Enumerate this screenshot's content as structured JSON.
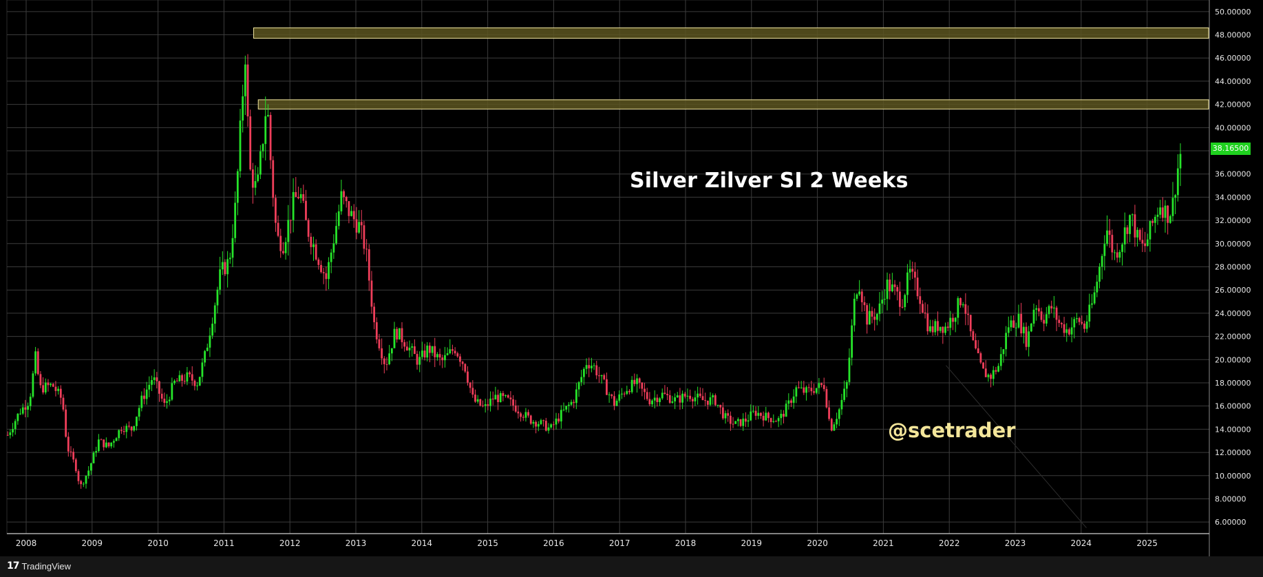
{
  "chart_data": {
    "type": "candlestick",
    "title": "Silver Zilver SI 2 Weeks",
    "watermark": "@scetrader",
    "ylim": [
      5,
      51
    ],
    "y_ticks": [
      "50.00000",
      "48.00000",
      "46.00000",
      "44.00000",
      "42.00000",
      "40.00000",
      "38.00000",
      "36.00000",
      "34.00000",
      "32.00000",
      "30.00000",
      "28.00000",
      "26.00000",
      "24.00000",
      "22.00000",
      "20.00000",
      "18.00000",
      "16.00000",
      "14.00000",
      "12.00000",
      "10.00000",
      "8.00000",
      "6.00000"
    ],
    "x_ticks": [
      "2008",
      "2009",
      "2010",
      "2011",
      "2012",
      "2013",
      "2014",
      "2015",
      "2016",
      "2017",
      "2018",
      "2019",
      "2020",
      "2021",
      "2022",
      "2023",
      "2024",
      "2025"
    ],
    "last_price": "38.16500",
    "resistance_zones": [
      {
        "from": 47.7,
        "to": 48.6,
        "start_year": 2011.45
      },
      {
        "from": 41.6,
        "to": 42.4,
        "start_year": 2011.52
      }
    ],
    "price_path": [
      [
        2007.72,
        13.5
      ],
      [
        2007.9,
        15.5
      ],
      [
        2008.05,
        16.5
      ],
      [
        2008.15,
        20.5
      ],
      [
        2008.2,
        17.5
      ],
      [
        2008.4,
        17.8
      ],
      [
        2008.55,
        16.5
      ],
      [
        2008.62,
        12.5
      ],
      [
        2008.75,
        10.8
      ],
      [
        2008.82,
        9.0
      ],
      [
        2008.95,
        10.5
      ],
      [
        2009.1,
        13.0
      ],
      [
        2009.25,
        12.5
      ],
      [
        2009.45,
        14.2
      ],
      [
        2009.6,
        14.0
      ],
      [
        2009.75,
        16.5
      ],
      [
        2009.92,
        18.5
      ],
      [
        2010.1,
        16.0
      ],
      [
        2010.25,
        18.0
      ],
      [
        2010.45,
        18.5
      ],
      [
        2010.6,
        18.0
      ],
      [
        2010.72,
        20.5
      ],
      [
        2010.85,
        24.5
      ],
      [
        2010.95,
        27.5
      ],
      [
        2011.08,
        28.5
      ],
      [
        2011.18,
        33.5
      ],
      [
        2011.3,
        44.5
      ],
      [
        2011.33,
        47.0
      ],
      [
        2011.38,
        36.5
      ],
      [
        2011.5,
        34.5
      ],
      [
        2011.58,
        38.5
      ],
      [
        2011.65,
        42.5
      ],
      [
        2011.72,
        36.0
      ],
      [
        2011.8,
        30.5
      ],
      [
        2011.9,
        30.0
      ],
      [
        2012.05,
        33.5
      ],
      [
        2012.15,
        34.5
      ],
      [
        2012.25,
        31.5
      ],
      [
        2012.45,
        28.5
      ],
      [
        2012.55,
        27.0
      ],
      [
        2012.7,
        31.5
      ],
      [
        2012.78,
        34.0
      ],
      [
        2012.92,
        32.5
      ],
      [
        2013.05,
        31.5
      ],
      [
        2013.15,
        29.5
      ],
      [
        2013.28,
        23.0
      ],
      [
        2013.45,
        19.5
      ],
      [
        2013.6,
        22.5
      ],
      [
        2013.75,
        21.5
      ],
      [
        2013.95,
        19.8
      ],
      [
        2014.1,
        21.0
      ],
      [
        2014.3,
        19.8
      ],
      [
        2014.5,
        21.0
      ],
      [
        2014.65,
        19.5
      ],
      [
        2014.78,
        16.5
      ],
      [
        2014.95,
        15.8
      ],
      [
        2015.1,
        16.8
      ],
      [
        2015.3,
        16.5
      ],
      [
        2015.5,
        15.5
      ],
      [
        2015.65,
        14.8
      ],
      [
        2015.8,
        14.5
      ],
      [
        2015.95,
        14.0
      ],
      [
        2016.1,
        15.2
      ],
      [
        2016.3,
        16.5
      ],
      [
        2016.5,
        19.8
      ],
      [
        2016.6,
        19.5
      ],
      [
        2016.75,
        18.0
      ],
      [
        2016.92,
        16.2
      ],
      [
        2017.1,
        17.5
      ],
      [
        2017.25,
        18.0
      ],
      [
        2017.45,
        16.5
      ],
      [
        2017.65,
        17.0
      ],
      [
        2017.85,
        16.5
      ],
      [
        2018.05,
        17.0
      ],
      [
        2018.25,
        16.5
      ],
      [
        2018.45,
        16.5
      ],
      [
        2018.6,
        15.0
      ],
      [
        2018.75,
        14.4
      ],
      [
        2018.92,
        14.8
      ],
      [
        2019.05,
        15.5
      ],
      [
        2019.25,
        15.0
      ],
      [
        2019.42,
        14.8
      ],
      [
        2019.55,
        16.0
      ],
      [
        2019.68,
        17.5
      ],
      [
        2019.82,
        17.2
      ],
      [
        2019.95,
        17.5
      ],
      [
        2020.1,
        17.8
      ],
      [
        2020.2,
        14.0
      ],
      [
        2020.32,
        15.5
      ],
      [
        2020.45,
        18.0
      ],
      [
        2020.55,
        24.5
      ],
      [
        2020.62,
        27.0
      ],
      [
        2020.75,
        23.5
      ],
      [
        2020.92,
        24.0
      ],
      [
        2021.05,
        26.5
      ],
      [
        2021.15,
        26.0
      ],
      [
        2021.28,
        25.0
      ],
      [
        2021.4,
        27.5
      ],
      [
        2021.55,
        25.5
      ],
      [
        2021.7,
        22.5
      ],
      [
        2021.85,
        23.0
      ],
      [
        2021.95,
        22.8
      ],
      [
        2022.08,
        24.0
      ],
      [
        2022.2,
        25.5
      ],
      [
        2022.35,
        21.5
      ],
      [
        2022.5,
        19.0
      ],
      [
        2022.62,
        18.5
      ],
      [
        2022.75,
        19.5
      ],
      [
        2022.9,
        23.0
      ],
      [
        2023.05,
        23.5
      ],
      [
        2023.18,
        21.5
      ],
      [
        2023.3,
        25.0
      ],
      [
        2023.42,
        23.5
      ],
      [
        2023.55,
        24.5
      ],
      [
        2023.68,
        23.0
      ],
      [
        2023.8,
        22.5
      ],
      [
        2023.95,
        23.5
      ],
      [
        2024.05,
        22.8
      ],
      [
        2024.18,
        25.0
      ],
      [
        2024.28,
        28.0
      ],
      [
        2024.38,
        31.5
      ],
      [
        2024.5,
        29.0
      ],
      [
        2024.6,
        30.0
      ],
      [
        2024.75,
        32.5
      ],
      [
        2024.85,
        30.5
      ],
      [
        2024.95,
        29.5
      ],
      [
        2025.1,
        32.0
      ],
      [
        2025.2,
        33.5
      ],
      [
        2025.3,
        32.5
      ],
      [
        2025.38,
        33.0
      ],
      [
        2025.45,
        36.0
      ],
      [
        2025.52,
        38.2
      ]
    ],
    "colors": {
      "up": "#26e42a",
      "down": "#ef3e5a",
      "zone_fill": "#5c5520",
      "zone_border": "#f2e6a0",
      "grid": "#3c3c3c",
      "axis_text": "#e8e8e8",
      "badge": "#1fd11f"
    }
  },
  "footer": {
    "brand": "TradingView",
    "brand_mark": "17"
  }
}
